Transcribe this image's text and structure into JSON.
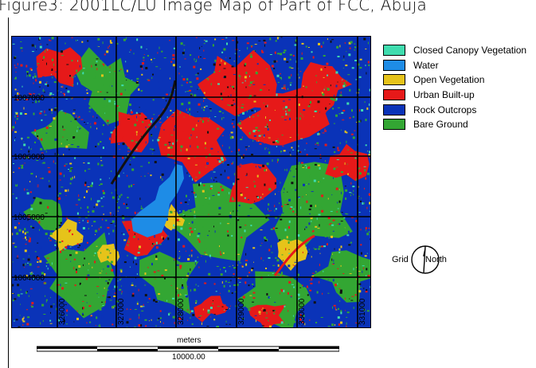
{
  "header": {
    "title": "Figure3: 2001LC/LU Image Map of Part of FCC, Abuja"
  },
  "map": {
    "colors": {
      "closed_canopy": "#3fdcae",
      "water": "#1e8ce6",
      "open_vegetation": "#e6c31a",
      "urban": "#e61919",
      "rock": "#0a33b8",
      "bare_ground": "#33a633",
      "built_dark": "#111111"
    },
    "grid_labels": {
      "rows": [
        "1007000",
        "1006000",
        "1005000",
        "1004000"
      ],
      "cols": [
        "326000",
        "327000",
        "328000",
        "329000",
        "330000",
        "331000"
      ]
    }
  },
  "legend": {
    "items": [
      {
        "label": "Closed Canopy Vegetation",
        "color": "#3fdcae"
      },
      {
        "label": "Water",
        "color": "#1e8ce6"
      },
      {
        "label": "Open Vegetation",
        "color": "#e6c31a"
      },
      {
        "label": "Urban Built-up",
        "color": "#e61919"
      },
      {
        "label": "Rock Outcrops",
        "color": "#0a33b8"
      },
      {
        "label": "Bare Ground",
        "color": "#33a633"
      }
    ]
  },
  "north_arrow": {
    "left_label": "Grid",
    "right_label": "North"
  },
  "scale": {
    "units": "meters",
    "distance": "10000.00"
  }
}
